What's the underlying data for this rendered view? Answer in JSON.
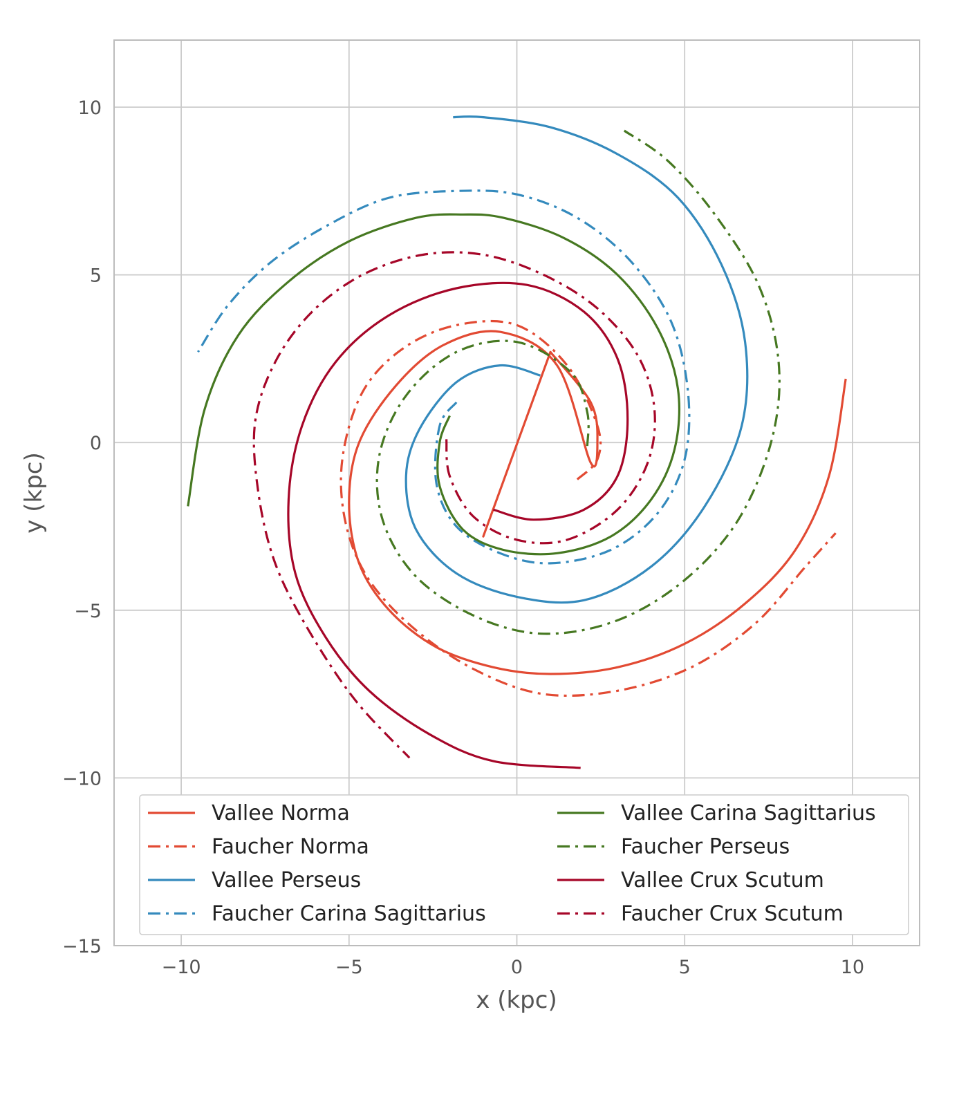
{
  "chart_data": {
    "type": "line",
    "title": "",
    "xlabel": "x (kpc)",
    "ylabel": "y (kpc)",
    "xlim": [
      -12,
      12
    ],
    "ylim": [
      -15,
      12
    ],
    "xticks": [
      -10,
      -5,
      0,
      5,
      10
    ],
    "xtick_labels": [
      "−10",
      "−5",
      "0",
      "5",
      "10"
    ],
    "yticks": [
      -15,
      -10,
      -5,
      0,
      5,
      10
    ],
    "ytick_labels": [
      "−15",
      "−10",
      "−5",
      "0",
      "5",
      "10"
    ],
    "grid": true,
    "legend_position": "lower center",
    "series": [
      {
        "name": "Vallee Norma",
        "color": "#e24a33",
        "style": "solid",
        "x": [
          1.0,
          2.2,
          2.4,
          2.2,
          1.2,
          -0.5,
          -2.2,
          -3.6,
          -4.7,
          -5.0,
          -4.7,
          -3.8,
          -2.4,
          -0.7,
          1.0,
          3.0,
          5.0,
          6.8,
          8.3,
          9.3,
          9.8
        ],
        "y": [
          2.7,
          1.2,
          0.0,
          -0.6,
          2.3,
          3.3,
          2.9,
          1.7,
          0.0,
          -1.8,
          -3.6,
          -5.0,
          -6.1,
          -6.7,
          -6.9,
          -6.7,
          -6.0,
          -4.8,
          -3.2,
          -1.0,
          1.9
        ]
      },
      {
        "name": "Faucher Norma",
        "color": "#e24a33",
        "style": "dashdot",
        "x": [
          1.8,
          2.4,
          2.4,
          1.5,
          0.0,
          -1.8,
          -3.4,
          -4.6,
          -5.2,
          -5.1,
          -4.4,
          -3.0,
          -1.2,
          0.8,
          3.0,
          5.2,
          7.1,
          8.6,
          9.5
        ],
        "y": [
          -1.1,
          -0.5,
          0.5,
          2.3,
          3.5,
          3.5,
          2.8,
          1.5,
          -0.5,
          -2.4,
          -4.1,
          -5.6,
          -6.8,
          -7.5,
          -7.4,
          -6.7,
          -5.4,
          -3.7,
          -2.7
        ]
      },
      {
        "name": "Vallee Perseus",
        "color": "#348abd",
        "style": "solid",
        "x": [
          0.7,
          -0.5,
          -1.8,
          -2.9,
          -3.3,
          -3.0,
          -1.8,
          0.0,
          2.0,
          4.0,
          5.6,
          6.7,
          6.8,
          6.1,
          4.8,
          3.0,
          1.0,
          -1.0,
          -1.9
        ],
        "y": [
          2.0,
          2.3,
          1.8,
          0.4,
          -1.0,
          -2.6,
          -3.9,
          -4.6,
          -4.7,
          -3.7,
          -1.9,
          0.5,
          3.0,
          5.3,
          7.3,
          8.6,
          9.4,
          9.7,
          9.7
        ]
      },
      {
        "name": "Faucher Carina Sagittarius",
        "color": "#348abd",
        "style": "dashdot",
        "x": [
          -1.8,
          -2.3,
          -2.4,
          -1.8,
          -0.5,
          1.0,
          2.8,
          4.2,
          5.0,
          5.1,
          4.6,
          3.4,
          1.8,
          0.0,
          -1.8,
          -3.8,
          -5.6,
          -7.3,
          -8.6,
          -9.5
        ],
        "y": [
          1.2,
          0.5,
          -1.2,
          -2.5,
          -3.3,
          -3.6,
          -3.2,
          -2.1,
          -0.5,
          1.5,
          3.6,
          5.4,
          6.7,
          7.4,
          7.5,
          7.3,
          6.5,
          5.4,
          4.1,
          2.7
        ]
      },
      {
        "name": "Vallee Carina Sagittarius",
        "color": "#467821",
        "style": "solid",
        "x": [
          -2.0,
          -2.3,
          -2.3,
          -1.6,
          -0.4,
          1.2,
          2.8,
          4.0,
          4.7,
          4.8,
          4.2,
          3.0,
          1.4,
          -0.4,
          -1.6,
          -3.0,
          -5.0,
          -6.8,
          -8.3,
          -9.3,
          -9.8
        ],
        "y": [
          0.8,
          0.0,
          -1.3,
          -2.6,
          -3.2,
          -3.3,
          -2.8,
          -1.7,
          -0.2,
          1.6,
          3.4,
          5.0,
          6.1,
          6.7,
          6.8,
          6.7,
          6.0,
          4.8,
          3.2,
          1.0,
          -1.9
        ]
      },
      {
        "name": "Faucher Perseus",
        "color": "#467821",
        "style": "dashdot",
        "x": [
          2.1,
          2.1,
          1.6,
          0.0,
          -1.8,
          -3.3,
          -4.1,
          -4.0,
          -3.0,
          -1.2,
          0.8,
          3.0,
          5.0,
          6.6,
          7.6,
          7.8,
          7.2,
          5.9,
          4.5,
          3.2
        ],
        "y": [
          -0.1,
          0.9,
          2.1,
          3.0,
          2.7,
          1.4,
          -0.4,
          -2.3,
          -4.0,
          -5.2,
          -5.7,
          -5.3,
          -4.1,
          -2.3,
          0.1,
          2.4,
          4.7,
          6.8,
          8.4,
          9.3
        ]
      },
      {
        "name": "Vallee Crux Scutum",
        "color": "#a60628",
        "style": "solid",
        "x": [
          -0.7,
          0.5,
          2.0,
          3.0,
          3.3,
          3.0,
          2.0,
          0.3,
          -1.8,
          -3.8,
          -5.4,
          -6.4,
          -6.8,
          -6.6,
          -5.7,
          -4.4,
          -2.6,
          -0.7,
          1.9
        ],
        "y": [
          -2.0,
          -2.3,
          -2.0,
          -1.0,
          0.7,
          2.5,
          3.9,
          4.7,
          4.6,
          3.8,
          2.4,
          0.5,
          -1.7,
          -3.9,
          -5.8,
          -7.4,
          -8.7,
          -9.5,
          -9.7
        ]
      },
      {
        "name": "Faucher Crux Scutum",
        "color": "#a60628",
        "style": "dashdot",
        "x": [
          -2.1,
          -2.0,
          -1.3,
          0.0,
          1.5,
          3.0,
          3.9,
          4.1,
          3.6,
          2.4,
          0.8,
          -1.0,
          -2.8,
          -4.6,
          -6.1,
          -7.2,
          -7.8,
          -7.7,
          -7.2,
          -6.2,
          -4.8,
          -3.2
        ],
        "y": [
          0.1,
          -1.0,
          -2.2,
          -2.9,
          -2.9,
          -2.0,
          -0.6,
          1.0,
          2.6,
          4.0,
          5.0,
          5.6,
          5.6,
          5.0,
          3.9,
          2.4,
          0.6,
          -1.5,
          -3.6,
          -5.6,
          -7.7,
          -9.4
        ]
      }
    ],
    "bar_segment": {
      "color": "#e24a33",
      "x": [
        -1.0,
        1.0
      ],
      "y": [
        -2.8,
        2.7
      ]
    }
  }
}
